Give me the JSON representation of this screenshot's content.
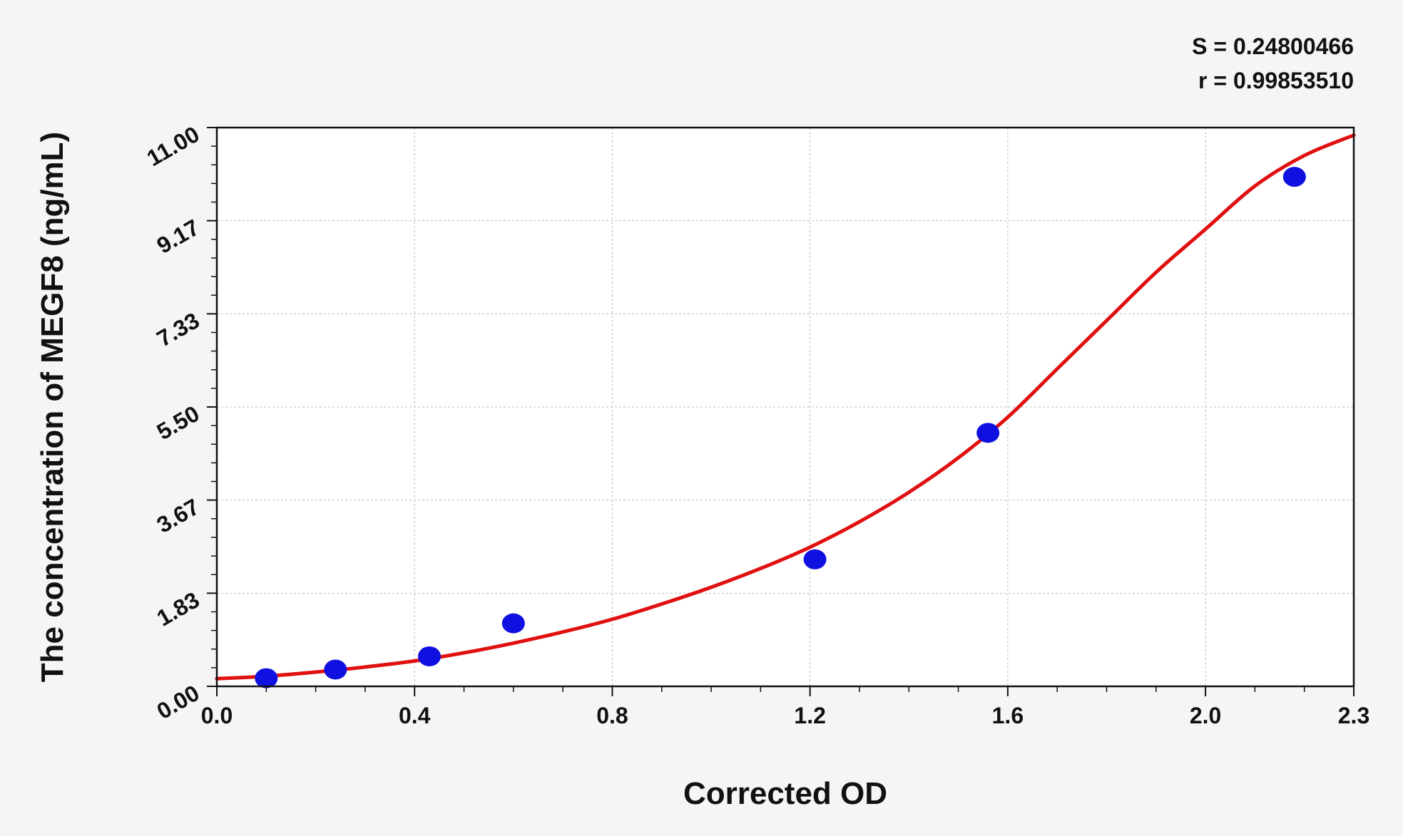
{
  "chart_data": {
    "type": "scatter",
    "title": "",
    "xlabel": "Corrected OD",
    "ylabel": "The concentration of MEGF8 (ng/mL)",
    "xlim": [
      0.0,
      2.3
    ],
    "ylim": [
      0.0,
      11.0
    ],
    "x_ticks": [
      "0.0",
      "0.4",
      "0.8",
      "1.2",
      "1.6",
      "2.0",
      "2.3"
    ],
    "y_ticks": [
      "0.00",
      "1.83",
      "3.67",
      "5.50",
      "7.33",
      "9.17",
      "11.00"
    ],
    "grid": true,
    "annotations": {
      "s_text": "S = 0.24800466",
      "r_text": "r = 0.99853510"
    },
    "points": {
      "name": "",
      "color": "#1010e0",
      "x": [
        0.1,
        0.24,
        0.43,
        0.6,
        1.21,
        1.56,
        2.18
      ],
      "y": [
        0.16,
        0.33,
        0.59,
        1.24,
        2.5,
        4.99,
        10.03
      ]
    },
    "fit_curve": {
      "name": "",
      "color": "#e01010",
      "x": [
        0.0,
        0.1,
        0.2,
        0.3,
        0.4,
        0.5,
        0.6,
        0.7,
        0.8,
        0.9,
        1.0,
        1.1,
        1.2,
        1.3,
        1.4,
        1.5,
        1.6,
        1.7,
        1.8,
        1.9,
        2.0,
        2.1,
        2.2,
        2.3
      ],
      "y": [
        0.15,
        0.2,
        0.28,
        0.38,
        0.5,
        0.66,
        0.85,
        1.07,
        1.32,
        1.62,
        1.95,
        2.32,
        2.74,
        3.24,
        3.82,
        4.5,
        5.3,
        6.25,
        7.2,
        8.15,
        9.0,
        9.85,
        10.45,
        10.85
      ]
    }
  }
}
